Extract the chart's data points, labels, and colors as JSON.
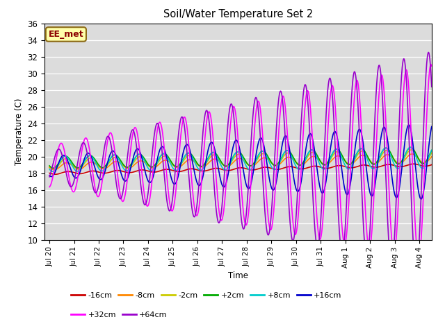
{
  "title": "Soil/Water Temperature Set 2",
  "xlabel": "Time",
  "ylabel": "Temperature (C)",
  "ylim": [
    10,
    36
  ],
  "bg_color": "#dcdcdc",
  "annotation": "EE_met",
  "series": [
    {
      "label": "-16cm",
      "color": "#cc0000",
      "base": 18.0,
      "trend": 0.065,
      "amplitude": 0.15,
      "amp_growth": 0.0,
      "period": 1.0,
      "phase": 0.5
    },
    {
      "label": "-8cm",
      "color": "#ff8800",
      "base": 18.8,
      "trend": 0.065,
      "amplitude": 0.4,
      "amp_growth": 0.01,
      "period": 1.0,
      "phase": 0.45
    },
    {
      "label": "-2cm",
      "color": "#cccc00",
      "base": 19.1,
      "trend": 0.06,
      "amplitude": 0.6,
      "amp_growth": 0.015,
      "period": 1.0,
      "phase": 0.42
    },
    {
      "label": "+2cm",
      "color": "#00aa00",
      "base": 19.3,
      "trend": 0.055,
      "amplitude": 0.7,
      "amp_growth": 0.02,
      "period": 1.0,
      "phase": 0.4
    },
    {
      "label": "+8cm",
      "color": "#00cccc",
      "base": 19.1,
      "trend": 0.05,
      "amplitude": 0.9,
      "amp_growth": 0.025,
      "period": 1.0,
      "phase": 0.38
    },
    {
      "label": "+16cm",
      "color": "#0000cc",
      "base": 18.8,
      "trend": 0.04,
      "amplitude": 1.2,
      "amp_growth": 0.22,
      "period": 1.0,
      "phase": 0.32
    },
    {
      "label": "+32cm",
      "color": "#ff00ff",
      "base": 18.8,
      "trend": 0.03,
      "amplitude": 2.5,
      "amp_growth": 0.6,
      "period": 1.0,
      "phase": 0.22
    },
    {
      "label": "+64cm",
      "color": "#9900cc",
      "base": 18.8,
      "trend": 0.025,
      "amplitude": 1.8,
      "amp_growth": 0.75,
      "period": 1.0,
      "phase": 0.12
    }
  ],
  "tick_labels": [
    "Jul 20",
    "Jul 21",
    "Jul 22",
    "Jul 23",
    "Jul 24",
    "Jul 25",
    "Jul 26",
    "Jul 27",
    "Jul 28",
    "Jul 29",
    "Jul 30",
    "Jul 31",
    "Aug 1",
    "Aug 2",
    "Aug 3",
    "Aug 4"
  ],
  "tick_positions": [
    0,
    1,
    2,
    3,
    4,
    5,
    6,
    7,
    8,
    9,
    10,
    11,
    12,
    13,
    14,
    15
  ],
  "legend_ncol": 6,
  "legend_row2": [
    "+32cm",
    "+64cm"
  ]
}
